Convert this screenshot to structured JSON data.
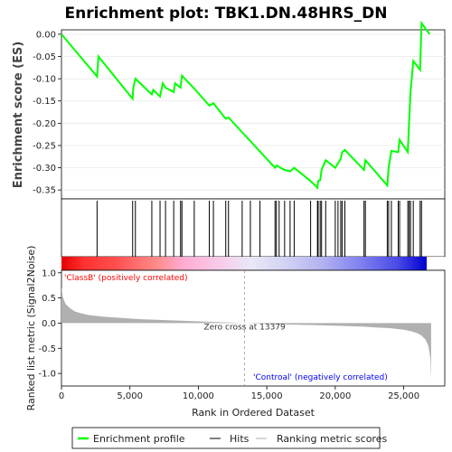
{
  "chart_data": {
    "type": "line",
    "title": "Enrichment plot: TBK1.DN.48HRS_DN",
    "es_panel": {
      "ylabel": "Enrichment score (ES)",
      "yticks": [
        "0.00",
        "-0.05",
        "-0.10",
        "-0.15",
        "-0.20",
        "-0.25",
        "-0.30",
        "-0.35"
      ],
      "ylim": [
        -0.37,
        0.01
      ],
      "xlim": [
        0,
        28000
      ],
      "x": [
        0,
        2600,
        2700,
        5200,
        5250,
        5400,
        6600,
        6700,
        7200,
        7400,
        7600,
        8200,
        8300,
        8700,
        8800,
        9700,
        10800,
        11100,
        12000,
        12200,
        15600,
        15700,
        15900,
        16300,
        16700,
        17000,
        18200,
        18700,
        18750,
        18900,
        19000,
        19300,
        20000,
        20200,
        20400,
        20500,
        20700,
        22100,
        22200,
        23800,
        23900,
        24100,
        24600,
        24700,
        25300,
        25400,
        25500,
        25700,
        26200,
        26300,
        26900
      ],
      "y": [
        0.0,
        -0.095,
        -0.05,
        -0.145,
        -0.12,
        -0.1,
        -0.135,
        -0.125,
        -0.14,
        -0.11,
        -0.12,
        -0.13,
        -0.11,
        -0.12,
        -0.093,
        -0.122,
        -0.16,
        -0.155,
        -0.19,
        -0.187,
        -0.3,
        -0.295,
        -0.298,
        -0.305,
        -0.308,
        -0.3,
        -0.33,
        -0.345,
        -0.33,
        -0.328,
        -0.305,
        -0.283,
        -0.3,
        -0.29,
        -0.28,
        -0.265,
        -0.26,
        -0.305,
        -0.283,
        -0.34,
        -0.3,
        -0.262,
        -0.265,
        -0.237,
        -0.265,
        -0.195,
        -0.13,
        -0.06,
        -0.08,
        0.025,
        0.0
      ]
    },
    "hits_panel": {
      "hit_positions": [
        2600,
        5200,
        5400,
        6600,
        7200,
        7600,
        8200,
        8700,
        8800,
        9700,
        10800,
        11100,
        12000,
        12200,
        13200,
        13800,
        14500,
        15600,
        15700,
        15900,
        16300,
        16700,
        17000,
        18200,
        18700,
        18750,
        18900,
        19000,
        19300,
        20000,
        20200,
        20400,
        20500,
        20700,
        22100,
        22200,
        23800,
        23900,
        24100,
        24600,
        24700,
        25300,
        25400,
        25500,
        25700,
        26200,
        26300
      ]
    },
    "metric_panel": {
      "ylabel": "Ranked list metric (Signal2Noise)",
      "xlabel": "Rank in Ordered Dataset",
      "yticks": [
        "1.0",
        "0.5",
        "0.0",
        "-0.5",
        "-1.0"
      ],
      "ylim": [
        -1.25,
        1.05
      ],
      "xticks": [
        "0",
        "5,000",
        "10,000",
        "15,000",
        "20,000",
        "25,000"
      ],
      "xtick_values": [
        0,
        5000,
        10000,
        15000,
        20000,
        25000
      ],
      "zero_cross": 13379,
      "zero_cross_label": "Zero cross at 13379",
      "pos_label": "'ClassB' (positively correlated)",
      "neg_label": "'Controal' (negatively correlated)",
      "pos_color": "#ff0000",
      "neg_color": "#0000ff",
      "curve_x": [
        0,
        100,
        300,
        600,
        1000,
        1500,
        2000,
        3000,
        4000,
        5000,
        6000,
        7000,
        8000,
        9000,
        10000,
        11000,
        12000,
        13379,
        15000,
        17000,
        19000,
        21000,
        22000,
        23000,
        24000,
        25000,
        25500,
        26000,
        26300,
        26600,
        26800,
        26950,
        27000
      ],
      "curve_y": [
        0.72,
        0.52,
        0.38,
        0.3,
        0.23,
        0.19,
        0.16,
        0.13,
        0.11,
        0.09,
        0.075,
        0.065,
        0.055,
        0.045,
        0.035,
        0.025,
        0.015,
        0.0,
        -0.015,
        -0.03,
        -0.045,
        -0.06,
        -0.07,
        -0.085,
        -0.1,
        -0.13,
        -0.16,
        -0.2,
        -0.25,
        -0.33,
        -0.45,
        -0.7,
        -1.12
      ]
    },
    "legend": [
      "Enrichment profile",
      "Hits",
      "Ranking metric scores"
    ],
    "line_color": "#00ff00"
  }
}
